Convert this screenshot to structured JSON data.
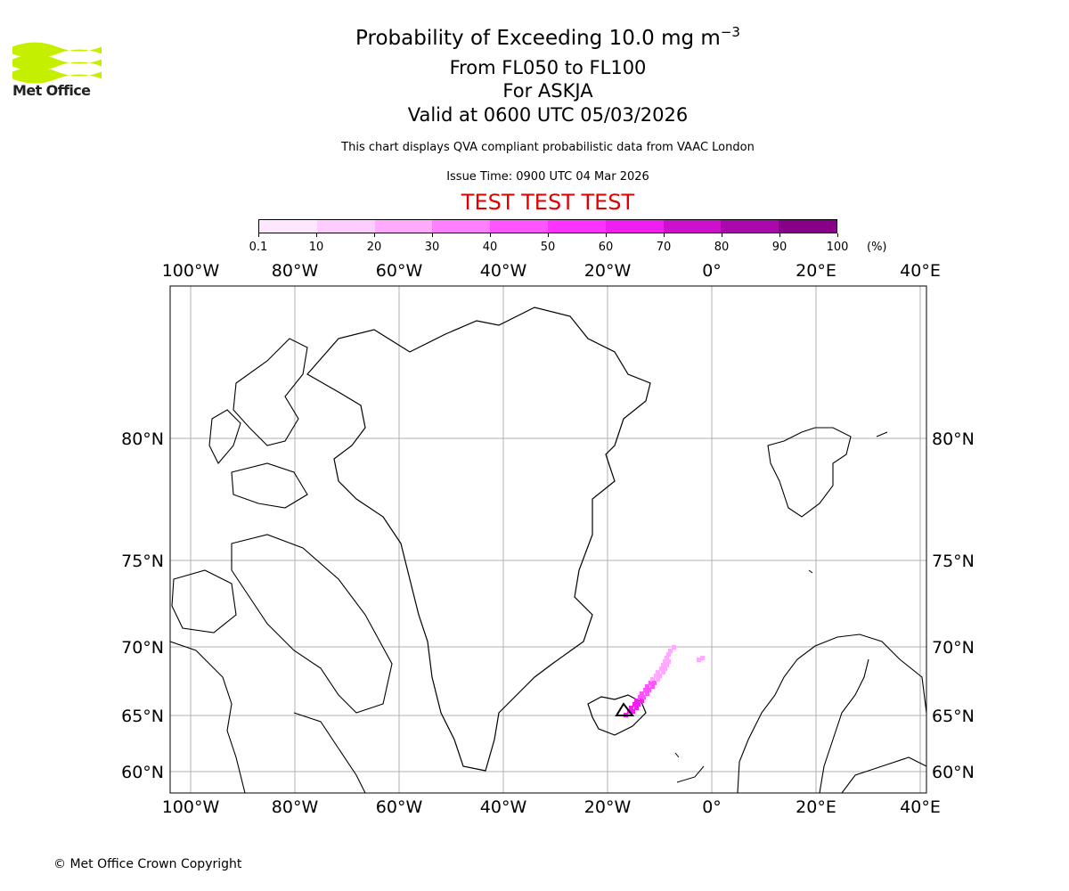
{
  "header": {
    "logo_text": "Met Office",
    "title_prefix": "Probability of Exceeding 10.0 mg m",
    "title_exponent": "−3",
    "levels": "From FL050 to FL100",
    "volcano": "For ASKJA",
    "valid": "Valid at 0600 UTC 05/03/2026",
    "disclaimer": "This chart displays QVA compliant probabilistic data from VAAC London",
    "issue_time": "Issue Time: 0900 UTC 04 Mar 2026",
    "test_banner": "TEST TEST TEST"
  },
  "colorbar": {
    "unit": "(%)",
    "ticks": [
      "0.1",
      "10",
      "20",
      "30",
      "40",
      "50",
      "60",
      "70",
      "80",
      "90",
      "100"
    ],
    "colors": [
      "#ffe6ff",
      "#ffccff",
      "#ffaaff",
      "#ff80ff",
      "#ff55ff",
      "#ff33ff",
      "#f01ef0",
      "#cc10cc",
      "#aa08aa",
      "#880088",
      "#660066"
    ]
  },
  "map": {
    "lon_labels_top": [
      "100°W",
      "80°W",
      "60°W",
      "40°W",
      "20°W",
      "0°",
      "20°E",
      "40°E"
    ],
    "lon_labels_bottom": [
      "100°W",
      "80°W",
      "60°W",
      "40°W",
      "20°W",
      "0°",
      "20°E",
      "40°E"
    ],
    "lat_labels": [
      "80°N",
      "75°N",
      "70°N",
      "65°N",
      "60°N"
    ],
    "plume_color": "#e020e0"
  },
  "footer": {
    "copyright": "© Met Office Crown Copyright"
  }
}
